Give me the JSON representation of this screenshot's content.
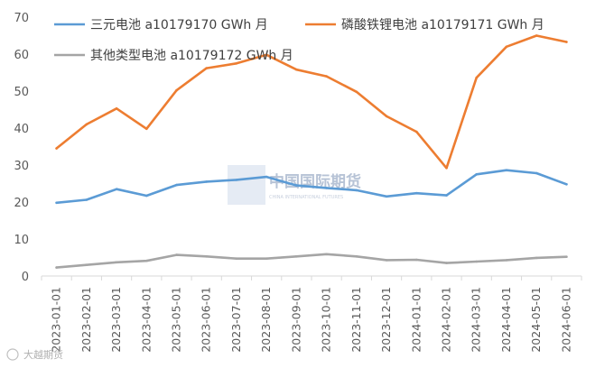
{
  "chart_data": {
    "type": "line",
    "categories": [
      "2023-01-01",
      "2023-02-01",
      "2023-03-01",
      "2023-04-01",
      "2023-05-01",
      "2023-06-01",
      "2023-07-01",
      "2023-08-01",
      "2023-09-01",
      "2023-10-01",
      "2023-11-01",
      "2023-12-01",
      "2024-01-01",
      "2024-02-01",
      "2024-03-01",
      "2024-04-01",
      "2024-05-01",
      "2024-06-01"
    ],
    "series": [
      {
        "name": "三元电池 a10179170 GWh 月",
        "color": "#5b9bd5",
        "values": [
          19.8,
          20.6,
          23.5,
          21.7,
          24.6,
          25.5,
          26.0,
          26.8,
          24.5,
          23.8,
          23.2,
          21.5,
          22.4,
          21.8,
          27.5,
          28.6,
          27.8,
          24.8
        ]
      },
      {
        "name": "磷酸铁锂电池 a10179171 GWh 月",
        "color": "#ed7d31",
        "values": [
          34.5,
          41.0,
          45.3,
          39.8,
          50.2,
          56.2,
          57.5,
          59.8,
          55.8,
          54.0,
          49.8,
          43.2,
          39.0,
          29.2,
          53.6,
          62.0,
          65.0,
          63.3
        ]
      },
      {
        "name": "其他类型电池 a10179172 GWh 月",
        "color": "#a5a5a5",
        "values": [
          2.3,
          3.0,
          3.7,
          4.1,
          5.7,
          5.3,
          4.7,
          4.7,
          5.3,
          5.9,
          5.3,
          4.3,
          4.4,
          3.5,
          3.9,
          4.3,
          4.9,
          5.2
        ]
      }
    ],
    "yticks": [
      0,
      10,
      20,
      30,
      40,
      50,
      60,
      70
    ],
    "ylim": [
      0,
      70
    ],
    "grid": false,
    "legend": "top"
  },
  "watermark": {
    "text": "中国国际期货",
    "sub": "CHINA INTERNATIONAL FUTURES"
  },
  "corner_mark": "大越期货",
  "colors": {
    "axis": "#d9d9d9",
    "text": "#595959"
  }
}
